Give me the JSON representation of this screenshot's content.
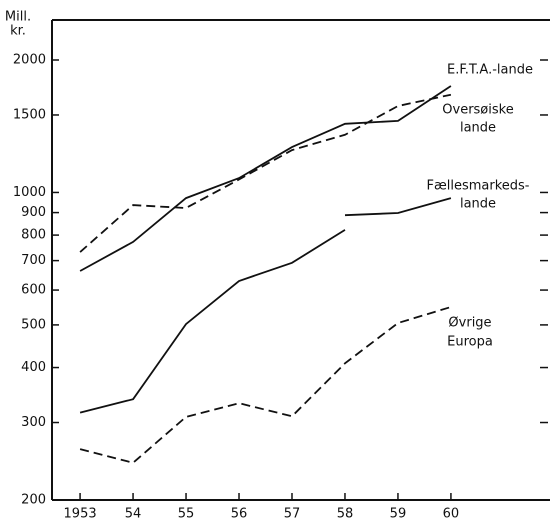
{
  "chart_data": {
    "type": "line",
    "y_label": [
      "Mill.",
      "kr."
    ],
    "log_y": true,
    "xlim": [
      1952.47,
      1961.87
    ],
    "ylim": [
      200,
      2000
    ],
    "xticks": [
      1953,
      {
        "value": 1954,
        "label": "54"
      },
      {
        "value": 1955,
        "label": "55"
      },
      {
        "value": 1956,
        "label": "56"
      },
      {
        "value": 1957,
        "label": "57"
      },
      {
        "value": 1958,
        "label": "58"
      },
      {
        "value": 1959,
        "label": "59"
      },
      {
        "value": 1960,
        "label": "60"
      }
    ],
    "yticks": [
      200,
      300,
      400,
      500,
      600,
      700,
      800,
      900,
      1000,
      1500,
      2000
    ],
    "series": [
      {
        "label": [
          "E.F.T.A.-lande"
        ],
        "color": "#111",
        "dashed": false,
        "x": [
          1953,
          1954,
          1955,
          1956,
          1957,
          1958,
          1959,
          1960
        ],
        "values": [
          663,
          772,
          971,
          1078,
          1268,
          1432,
          1454,
          1746
        ]
      },
      {
        "label": [
          "Oversøiske",
          "lande"
        ],
        "color": "#111",
        "dashed": true,
        "x": [
          1953,
          1954,
          1955,
          1956,
          1957,
          1958,
          1959,
          1960
        ],
        "values": [
          732,
          936,
          922,
          1070,
          1248,
          1352,
          1572,
          1668
        ]
      },
      {
        "label": [
          "Fællesmarkeds-",
          "lande"
        ],
        "color": "#111",
        "dashed": false,
        "x": [
          1953,
          1954,
          1955,
          1956,
          1957,
          1958,
          1958,
          1958,
          1959,
          1960
        ],
        "values": [
          316,
          339,
          502,
          629,
          692,
          822,
          null,
          888,
          898,
          971
        ]
      },
      {
        "label": [
          "Øvrige",
          "Europa"
        ],
        "color": "#111",
        "dashed": true,
        "x": [
          1953,
          1954,
          1955,
          1956,
          1957,
          1958,
          1959,
          1960
        ],
        "values": [
          261,
          243,
          309,
          332,
          310,
          409,
          505,
          549
        ]
      }
    ]
  }
}
